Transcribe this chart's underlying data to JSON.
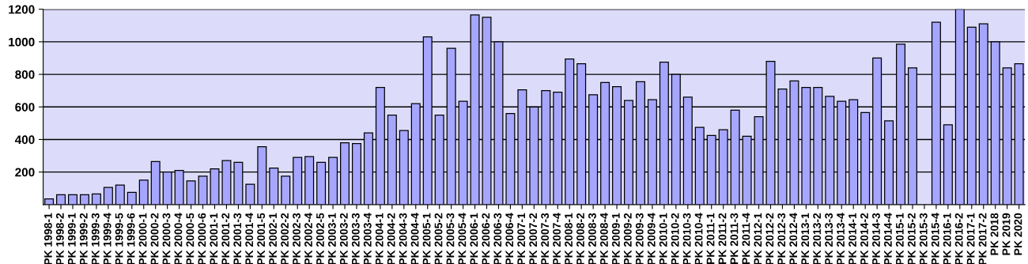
{
  "chart_data": {
    "type": "bar",
    "categories": [
      "PK 1998-1",
      "PK 1998-2",
      "PK 1999-1",
      "PK 1999-2",
      "PK 1999-3",
      "PK 1999-4",
      "PK 1999-5",
      "PK 1999-6",
      "PK 2000-1",
      "PK 2000-2",
      "PK 2000-3",
      "PK 2000-4",
      "PK 2000-5",
      "PK 2000-6",
      "PK 2001-1",
      "PK 2001-2",
      "PK 2001-3",
      "PK 2001-4",
      "PK 2001-5",
      "PK 2002-1",
      "PK 2002-2",
      "PK 2002-3",
      "PK 2002-4",
      "PK 2002-5",
      "PK 2003-1",
      "PK 2003-2",
      "PK 2003-3",
      "PK 2003-4",
      "PK 2004-1",
      "PK 2004-2",
      "PK 2004-3",
      "PK 2004-4",
      "PK 2005-1",
      "PK 2005-2",
      "PK 2005-3",
      "PK 2005-4",
      "PK 2006-1",
      "PK 2006-2",
      "PK 2006-3",
      "PK 2006-4",
      "PK 2007-1",
      "PK 2007-2",
      "PK 2007-3",
      "PK 2007-4",
      "PK 2008-1",
      "PK 2008-2",
      "PK 2008-3",
      "PK 2008-4",
      "PK 2009-1",
      "PK 2009-2",
      "PK 2009-3",
      "PK 2009-4",
      "PK 2010-1",
      "PK 2010-2",
      "PK 2010-3",
      "PK 2010-4",
      "PK 2011-1",
      "PK 2011-2",
      "PK 2011-3",
      "PK 2011-4",
      "PK 2012-1",
      "PK 2012-2",
      "PK 2012-3",
      "PK 2012-4",
      "PK 2013-1",
      "PK 2013-2",
      "PK 2013-3",
      "PK 2013-4",
      "PK 2014-1",
      "PK 2014-2",
      "PK 2014-3",
      "PK 2014-4",
      "PK 2015-1",
      "PK 2015-2",
      "PK 2015-3",
      "PK 2015-4",
      "PK 2016-1",
      "PK 2016-2",
      "PK 2017-1",
      "PK 2017-2",
      "PK 2018",
      "PK 2019",
      "PK 2020"
    ],
    "values": [
      35,
      60,
      60,
      60,
      65,
      105,
      120,
      75,
      150,
      265,
      200,
      210,
      145,
      175,
      220,
      270,
      260,
      125,
      355,
      225,
      175,
      290,
      295,
      260,
      290,
      380,
      375,
      440,
      720,
      550,
      455,
      620,
      1030,
      550,
      960,
      635,
      1165,
      1150,
      1000,
      560,
      705,
      600,
      700,
      690,
      895,
      865,
      675,
      750,
      725,
      640,
      755,
      645,
      875,
      800,
      660,
      475,
      425,
      460,
      580,
      420,
      540,
      880,
      710,
      760,
      720,
      720,
      665,
      635,
      645,
      565,
      900,
      515,
      985,
      840,
      null,
      1120,
      490,
      1200,
      1090,
      1110,
      1000,
      840,
      865
    ],
    "color": "#a6a6ff",
    "ylim": [
      0,
      1200
    ],
    "yticks": [
      200,
      400,
      600,
      800,
      1000,
      1200
    ],
    "grid": "y",
    "legend": false
  }
}
